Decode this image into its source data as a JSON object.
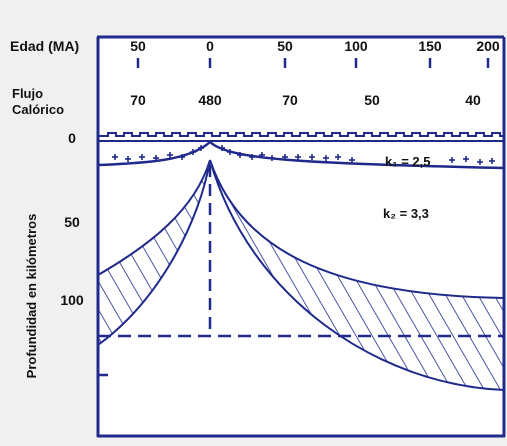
{
  "header": {
    "age_label": "Edad (MA)",
    "heat_label_line1": "Flujo",
    "heat_label_line2": "Calórico"
  },
  "ages": [
    "50",
    "0",
    "50",
    "100",
    "150",
    "200"
  ],
  "heat_flows": [
    "70",
    "480",
    "70",
    "50",
    "40"
  ],
  "depth_axis": {
    "label": "Profundidad en kilómetros",
    "ticks": [
      "0",
      "50",
      "100"
    ]
  },
  "layers": {
    "k1_label": "k₁ = 2,5",
    "k2_label": "k₂ = 3,3"
  },
  "colors": {
    "frame": "#1f2a8c",
    "text": "#111111",
    "background": "#f0f0f0",
    "panel": "#ffffff"
  }
}
